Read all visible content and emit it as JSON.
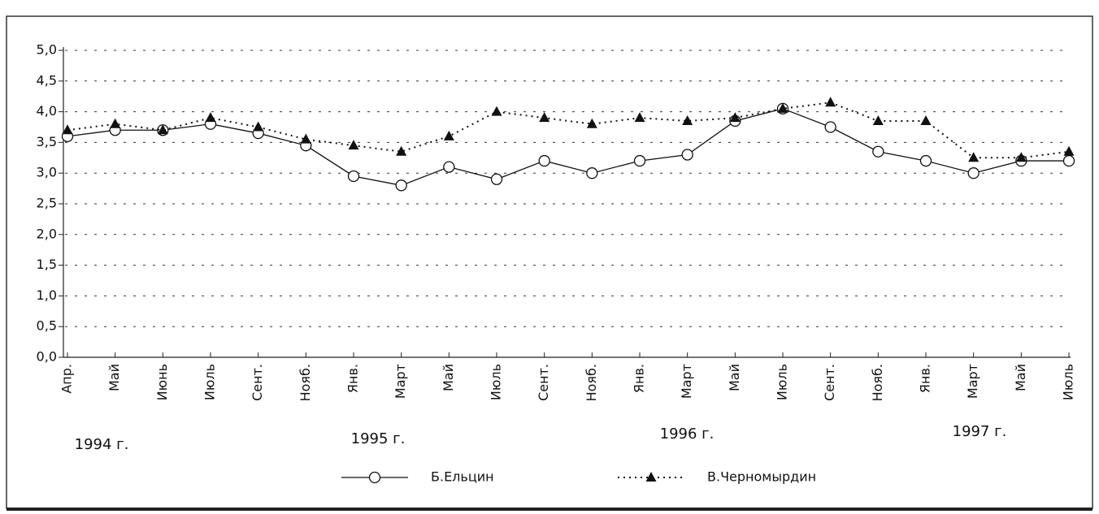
{
  "chart_data": {
    "type": "line",
    "categories": [
      "Апр.",
      "Май",
      "Июнь",
      "Июль",
      "Сент.",
      "Нояб.",
      "Янв.",
      "Март",
      "Май",
      "Июль",
      "Сент.",
      "Нояб.",
      "Янв.",
      "Март",
      "Май",
      "Июль",
      "Сент.",
      "Нояб.",
      "Янв.",
      "Март",
      "Май",
      "Июль"
    ],
    "series": [
      {
        "name": "Б.Ельцин",
        "color": "#111111",
        "marker": "circle",
        "line_style": "solid",
        "values": [
          3.6,
          3.7,
          3.7,
          3.8,
          3.65,
          3.45,
          2.95,
          2.8,
          3.1,
          2.9,
          3.2,
          3.0,
          3.2,
          3.3,
          3.85,
          4.05,
          3.75,
          3.35,
          3.2,
          3.0,
          3.2,
          3.2
        ]
      },
      {
        "name": "В.Черномырдин",
        "color": "#111111",
        "marker": "triangle",
        "line_style": "dotted",
        "values": [
          3.7,
          3.8,
          3.7,
          3.9,
          3.75,
          3.55,
          3.45,
          3.35,
          3.6,
          4.0,
          3.9,
          3.8,
          3.9,
          3.85,
          3.9,
          4.05,
          4.15,
          3.85,
          3.85,
          3.25,
          3.25,
          3.35
        ]
      }
    ],
    "ylim": [
      0,
      5
    ],
    "yticks": [
      {
        "value": 0,
        "label": "0,0"
      },
      {
        "value": 0.5,
        "label": "0,5"
      },
      {
        "value": 1,
        "label": "1,0"
      },
      {
        "value": 1.5,
        "label": "1,5"
      },
      {
        "value": 2,
        "label": "2,0"
      },
      {
        "value": 2.5,
        "label": "2,5"
      },
      {
        "value": 3,
        "label": "3,0"
      },
      {
        "value": 3.5,
        "label": "3,5"
      },
      {
        "value": 4,
        "label": "4,0"
      },
      {
        "value": 4.5,
        "label": "4,5"
      },
      {
        "value": 5,
        "label": "5,0"
      }
    ],
    "grid": true,
    "legend": "bottom",
    "annotations": [
      "1994 г.",
      "1995 г.",
      "1996 г.",
      "1997 г."
    ]
  }
}
